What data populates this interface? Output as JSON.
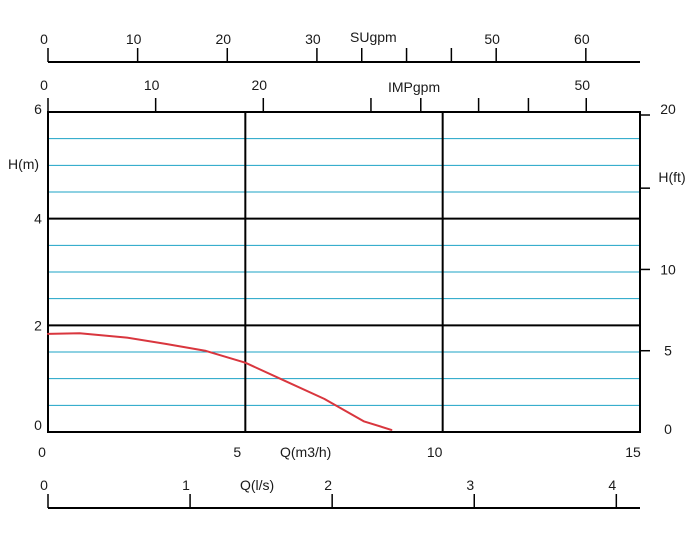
{
  "chart_data": {
    "type": "line",
    "xlabel": "Q(m3/h)",
    "ylabel": "H(m)",
    "xlim": [
      0,
      15
    ],
    "ylim": [
      0,
      6
    ],
    "x_ticks": [
      "0",
      "5",
      "10",
      "15"
    ],
    "y_ticks": [
      "0",
      "2",
      "4",
      "6"
    ],
    "grid": true,
    "grid_color": "#1ba3c6",
    "series": [
      {
        "color": "#d9363e",
        "x": [
          0,
          0.8,
          2,
          3,
          4,
          5,
          6,
          7,
          8,
          8.7
        ],
        "y": [
          1.84,
          1.85,
          1.77,
          1.65,
          1.52,
          1.3,
          0.96,
          0.62,
          0.2,
          0.04
        ]
      }
    ],
    "secondary_axes": {
      "right": {
        "label": "H(ft)",
        "ticks": [
          {
            "value": 0,
            "label": "0"
          },
          {
            "value": 5,
            "label": "5"
          },
          {
            "value": 10,
            "label": "10"
          },
          {
            "value": 20,
            "label": "20"
          }
        ]
      },
      "top_sugpm": {
        "label": "SUgpm",
        "ticks": [
          {
            "value": 0,
            "label": "0"
          },
          {
            "value": 10,
            "label": "10"
          },
          {
            "value": 20,
            "label": "20"
          },
          {
            "value": 30,
            "label": "30"
          },
          {
            "value": 50,
            "label": "50"
          },
          {
            "value": 60,
            "label": "60"
          }
        ]
      },
      "top_impgpm": {
        "label": "IMPgpm",
        "ticks": [
          {
            "value": 0,
            "label": "0"
          },
          {
            "value": 10,
            "label": "10"
          },
          {
            "value": 20,
            "label": "20"
          },
          {
            "value": 50,
            "label": "50"
          }
        ]
      },
      "bottom_ls": {
        "label": "Q(l/s)",
        "ticks": [
          {
            "value": 0,
            "label": "0"
          },
          {
            "value": 1,
            "label": "1"
          },
          {
            "value": 2,
            "label": "2"
          },
          {
            "value": 3,
            "label": "3"
          },
          {
            "value": 4,
            "label": "4"
          }
        ]
      }
    }
  }
}
